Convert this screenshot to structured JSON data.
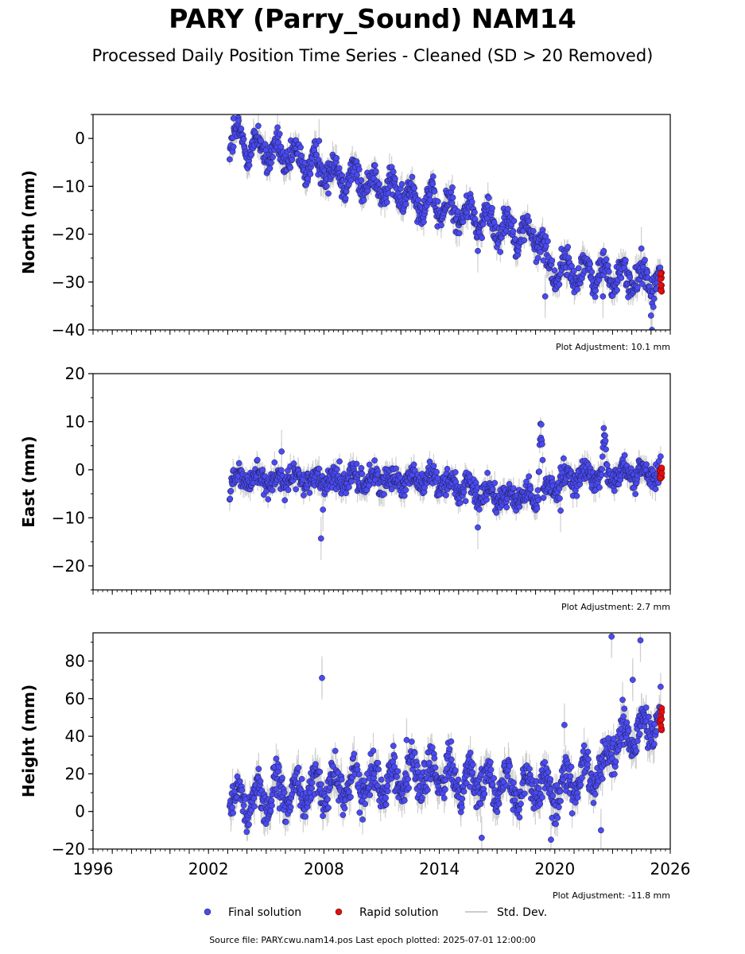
{
  "title": "PARY (Parry_Sound) NAM14",
  "subtitle": "Processed Daily Position Time Series - Cleaned (SD > 20 Removed)",
  "footer": "Source file: PARY.cwu.nam14.pos  Last epoch plotted: 2025-07-01 12:00:00",
  "legend": [
    {
      "label": "Final solution",
      "marker": "dot",
      "color": "#4a4af0"
    },
    {
      "label": "Rapid solution",
      "marker": "dot",
      "color": "#e01010"
    },
    {
      "label": "Std. Dev.",
      "marker": "line",
      "color": "#cccccc"
    }
  ],
  "colors": {
    "final": "#4a4af0",
    "rapid": "#e01010",
    "errorbar": "#b0b0b0",
    "edge": "#1a1a4a"
  },
  "chart_data": [
    {
      "type": "scatter",
      "ylabel": "North (mm)",
      "xlim": [
        1996,
        2026
      ],
      "ylim": [
        -40,
        5
      ],
      "yticks": [
        0,
        -10,
        -20,
        -30,
        -40
      ],
      "adjustment": "Plot Adjustment: 10.1 mm",
      "start_year": 2003.1,
      "end_year": 2025.5,
      "trend": [
        [
          2003.1,
          0
        ],
        [
          2019.3,
          -21
        ],
        [
          2019.6,
          -27
        ],
        [
          2025.5,
          -30
        ]
      ],
      "seasonal_amplitude": 2.5,
      "noise": 1.5,
      "outliers": [
        [
          2003.3,
          4.2
        ],
        [
          2007.75,
          -0.5
        ],
        [
          2016.0,
          -23.5
        ],
        [
          2019.5,
          -33.0
        ],
        [
          2022.5,
          -33.0
        ],
        [
          2024.5,
          -23.0
        ],
        [
          2025.0,
          -37.0
        ],
        [
          2025.05,
          -40.0
        ]
      ],
      "rapid_range": [
        -32,
        -28
      ]
    },
    {
      "type": "scatter",
      "ylabel": "East (mm)",
      "xlim": [
        1996,
        2026
      ],
      "ylim": [
        -25,
        20
      ],
      "yticks": [
        20,
        10,
        0,
        -10,
        -20
      ],
      "adjustment": "Plot Adjustment: 2.7 mm",
      "start_year": 2003.1,
      "end_year": 2025.5,
      "trend": [
        [
          2003.1,
          -2
        ],
        [
          2014.0,
          -2
        ],
        [
          2016.0,
          -5
        ],
        [
          2019.0,
          -6
        ],
        [
          2020.0,
          -3
        ],
        [
          2022.0,
          -1
        ],
        [
          2025.5,
          -1
        ]
      ],
      "seasonal_amplitude": 1.2,
      "noise": 1.3,
      "transients": [
        [
          2019.15,
          0.25,
          14
        ],
        [
          2022.45,
          0.25,
          8
        ]
      ],
      "outliers": [
        [
          2005.8,
          3.8
        ],
        [
          2007.85,
          -14.3
        ],
        [
          2007.95,
          -8.3
        ],
        [
          2016.0,
          -12.0
        ],
        [
          2020.3,
          -8.5
        ]
      ],
      "rapid_range": [
        -2.5,
        0.5
      ]
    },
    {
      "type": "scatter",
      "ylabel": "Height (mm)",
      "xlim": [
        1996,
        2026
      ],
      "ylim": [
        -20,
        95
      ],
      "yticks": [
        80,
        60,
        40,
        20,
        0,
        -20
      ],
      "xticks": [
        1996,
        2002,
        2008,
        2014,
        2020,
        2026
      ],
      "adjustment": "Plot Adjustment: -11.8 mm",
      "start_year": 2003.1,
      "end_year": 2025.5,
      "trend": [
        [
          2003.1,
          5
        ],
        [
          2013.0,
          20
        ],
        [
          2017.0,
          15
        ],
        [
          2020.0,
          12
        ],
        [
          2022.7,
          22
        ],
        [
          2022.8,
          33
        ],
        [
          2025.0,
          45
        ],
        [
          2025.5,
          48
        ]
      ],
      "seasonal_amplitude": 8,
      "noise": 5,
      "outliers": [
        [
          2007.9,
          71
        ],
        [
          2012.3,
          38
        ],
        [
          2020.5,
          46
        ],
        [
          2022.95,
          93
        ],
        [
          2024.05,
          70
        ],
        [
          2024.45,
          91
        ],
        [
          2016.2,
          -14
        ],
        [
          2019.8,
          -15
        ],
        [
          2022.4,
          -10
        ]
      ],
      "rapid_range": [
        42,
        55
      ]
    }
  ]
}
